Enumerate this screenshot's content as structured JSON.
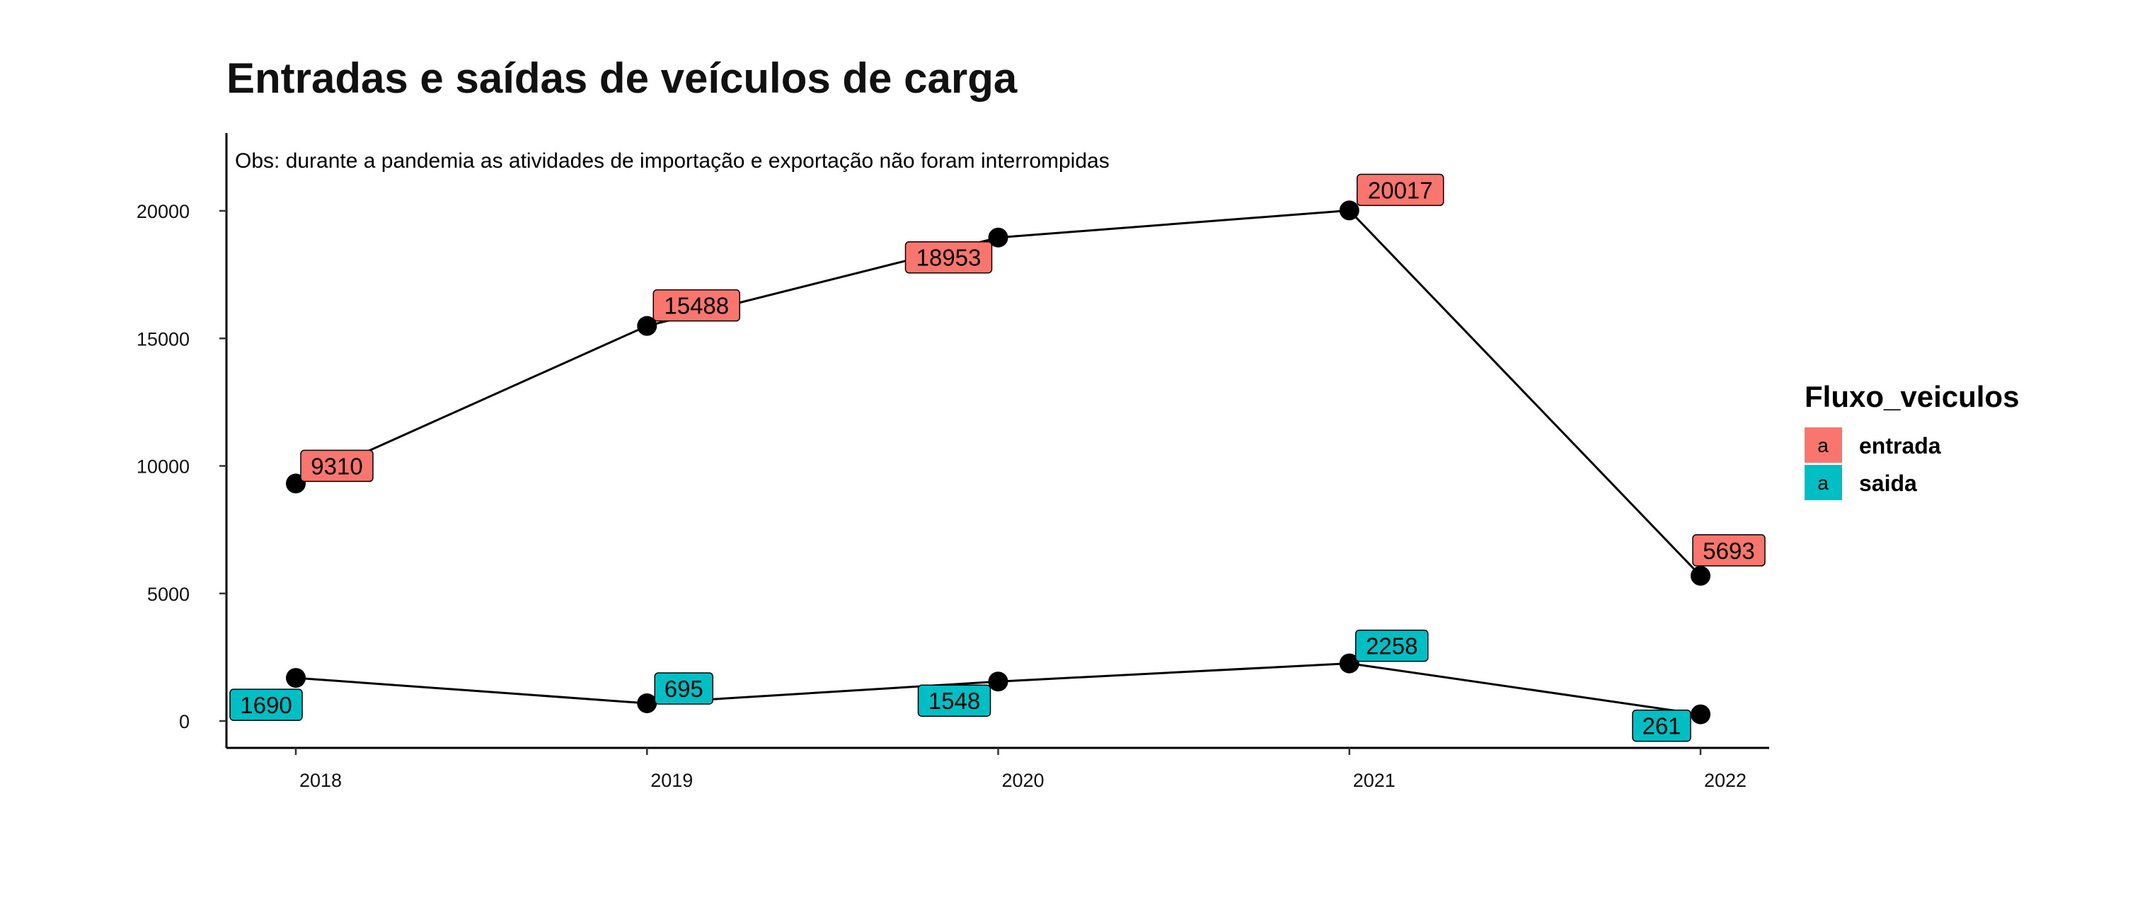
{
  "chart_data": {
    "type": "line",
    "title": "Entradas e saídas de veículos de carga",
    "annotation": "Obs: durante a pandemia as atividades de importação e exportação não foram interrompidas",
    "x": [
      2018,
      2019,
      2020,
      2021,
      2022
    ],
    "x_tick_labels": [
      "2018",
      "2019",
      "2020",
      "2021",
      "2022"
    ],
    "y_ticks": [
      0,
      5000,
      10000,
      15000,
      20000
    ],
    "y_tick_labels": [
      "0",
      "5000",
      "10000",
      "15000",
      "20000"
    ],
    "ylim": [
      -1000,
      23000
    ],
    "xlabel": "",
    "ylabel": "",
    "grid": false,
    "legend": {
      "title": "Fluxo_veiculos",
      "placement": "right",
      "key_glyph": "a"
    },
    "series": [
      {
        "name": "entrada",
        "color": "#F8766D",
        "values": [
          9310,
          15488,
          18953,
          20017,
          5693
        ],
        "labels": [
          "9310",
          "15488",
          "18953",
          "20017",
          "5693"
        ]
      },
      {
        "name": "saida",
        "color": "#00BFC4",
        "values": [
          1690,
          695,
          1548,
          2258,
          261
        ],
        "labels": [
          "1690",
          "695",
          "1548",
          "2258",
          "261"
        ]
      }
    ]
  }
}
